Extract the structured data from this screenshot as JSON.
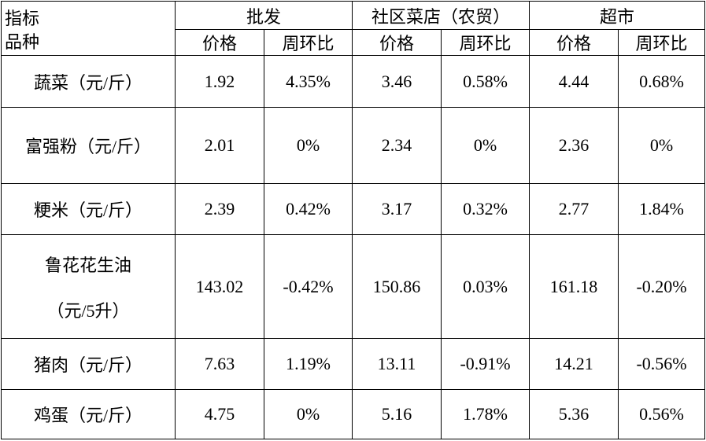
{
  "corner": {
    "top": "指标",
    "bottom": "品种"
  },
  "groups": [
    "批发",
    "社区菜店（农贸）",
    "超市"
  ],
  "subheaders": [
    "价格",
    "周环比",
    "价格",
    "周环比",
    "价格",
    "周环比"
  ],
  "rows": [
    {
      "label": [
        "蔬菜（元/斤）"
      ],
      "cells": [
        "1.92",
        "4.35%",
        "3.46",
        "0.58%",
        "4.44",
        "0.68%"
      ]
    },
    {
      "label": [
        "富强粉（元/斤）"
      ],
      "cells": [
        "2.01",
        "0%",
        "2.34",
        "0%",
        "2.36",
        "0%"
      ]
    },
    {
      "label": [
        "粳米（元/斤）"
      ],
      "cells": [
        "2.39",
        "0.42%",
        "3.17",
        "0.32%",
        "2.77",
        "1.84%"
      ]
    },
    {
      "label": [
        "鲁花花生油",
        "（元/5升）"
      ],
      "cells": [
        "143.02",
        "-0.42%",
        "150.86",
        "0.03%",
        "161.18",
        "-0.20%"
      ]
    },
    {
      "label": [
        "猪肉（元/斤）"
      ],
      "cells": [
        "7.63",
        "1.19%",
        "13.11",
        "-0.91%",
        "14.21",
        "-0.56%"
      ]
    },
    {
      "label": [
        "鸡蛋（元/斤）"
      ],
      "cells": [
        "4.75",
        "0%",
        "5.16",
        "1.78%",
        "5.36",
        "0.56%"
      ]
    }
  ]
}
